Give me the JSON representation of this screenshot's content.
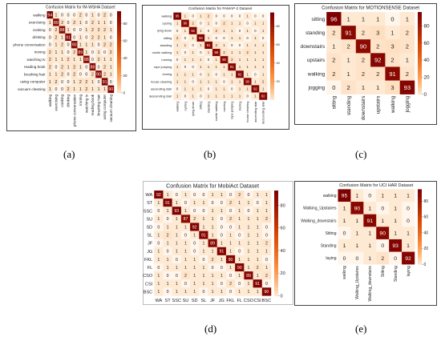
{
  "captions": [
    "(a)",
    "(b)",
    "(c)",
    "(d)",
    "(e)"
  ],
  "chart_data": [
    {
      "type": "heatmap",
      "title": "Confusion Matrix for IM-WSHA Dataset",
      "ylabels": [
        "walking",
        "exercising",
        "cooking",
        "drinking",
        "phone conversation",
        "ironing",
        "watching tv",
        "reading book",
        "brushing hair",
        "using computer",
        "vacuum cleaning"
      ],
      "xlabels": [
        "walking",
        "exercising",
        "cooking",
        "drinking",
        "phone conversation",
        "ironing",
        "watching tv",
        "reading book",
        "brushing hair",
        "using computer",
        "vacuum cleaning"
      ],
      "matrix": [
        [
          94,
          1,
          0,
          0,
          0,
          2,
          0,
          1,
          0,
          2,
          0
        ],
        [
          1,
          89,
          2,
          0,
          2,
          1,
          0,
          2,
          1,
          1,
          0
        ],
        [
          0,
          2,
          88,
          1,
          0,
          0,
          1,
          2,
          2,
          2,
          1
        ],
        [
          0,
          2,
          1,
          91,
          0,
          1,
          0,
          2,
          2,
          1,
          0
        ],
        [
          0,
          1,
          2,
          0,
          90,
          1,
          1,
          1,
          0,
          2,
          2
        ],
        [
          2,
          1,
          1,
          0,
          2,
          89,
          1,
          0,
          1,
          0,
          2
        ],
        [
          2,
          1,
          1,
          2,
          1,
          1,
          88,
          0,
          2,
          1,
          1
        ],
        [
          2,
          0,
          2,
          1,
          2,
          1,
          0,
          88,
          0,
          2,
          1
        ],
        [
          1,
          1,
          2,
          0,
          2,
          0,
          0,
          2,
          90,
          2,
          1
        ],
        [
          1,
          2,
          0,
          0,
          1,
          2,
          2,
          1,
          0,
          91,
          0
        ],
        [
          1,
          0,
          0,
          2,
          1,
          1,
          2,
          1,
          1,
          1,
          90
        ]
      ],
      "colorbar_ticks": [
        80,
        60,
        40,
        20,
        0
      ],
      "vmin": 0,
      "vmax": 94
    },
    {
      "type": "heatmap",
      "title": "Confusion Matrix for PAMAP-2 Dataset",
      "ylabels": [
        "walking",
        "cycling",
        "lying down",
        "sitting",
        "standing",
        "nordic walking",
        "running",
        "rope jumping",
        "ironing",
        "house cleaning",
        "ascending stair",
        "descending stair"
      ],
      "xlabels": [
        "walking",
        "cycling",
        "lying down",
        "sitting",
        "standing",
        "nordic walking",
        "running",
        "rope jumping",
        "ironing",
        "house cleaning",
        "ascending stair",
        "descending stair"
      ],
      "matrix": [
        [
          95,
          1,
          0,
          1,
          2,
          0,
          0,
          0,
          0,
          1,
          0,
          0
        ],
        [
          1,
          90,
          2,
          0,
          1,
          0,
          2,
          1,
          1,
          0,
          1,
          1
        ],
        [
          0,
          1,
          92,
          1,
          0,
          2,
          1,
          1,
          0,
          1,
          0,
          1
        ],
        [
          2,
          0,
          1,
          93,
          1,
          0,
          0,
          1,
          1,
          0,
          1,
          0
        ],
        [
          1,
          1,
          0,
          1,
          91,
          2,
          1,
          0,
          0,
          1,
          1,
          1
        ],
        [
          1,
          0,
          1,
          0,
          1,
          89,
          2,
          1,
          1,
          2,
          1,
          1
        ],
        [
          0,
          1,
          1,
          1,
          0,
          1,
          90,
          2,
          1,
          1,
          1,
          1
        ],
        [
          1,
          0,
          0,
          1,
          1,
          1,
          1,
          91,
          1,
          1,
          1,
          1
        ],
        [
          1,
          1,
          1,
          0,
          1,
          0,
          1,
          1,
          92,
          1,
          0,
          1
        ],
        [
          1,
          1,
          0,
          1,
          1,
          1,
          0,
          1,
          1,
          90,
          1,
          2
        ],
        [
          0,
          1,
          1,
          1,
          0,
          1,
          1,
          0,
          1,
          1,
          92,
          1
        ],
        [
          1,
          0,
          1,
          0,
          1,
          1,
          1,
          1,
          1,
          0,
          1,
          92
        ]
      ],
      "colorbar_ticks": [
        80,
        60,
        40,
        20
      ],
      "vmin": 0,
      "vmax": 95
    },
    {
      "type": "heatmap",
      "title": "Confusion Matrix for MOTIONSENSE Dataset",
      "ylabels": [
        "sitting",
        "standing",
        "downstairs",
        "upstairs",
        "walking",
        "jogging"
      ],
      "xlabels": [
        "sitting",
        "standing",
        "downstairs",
        "upstairs",
        "walking",
        "jogging"
      ],
      "matrix": [
        [
          96,
          1,
          1,
          1,
          0,
          1
        ],
        [
          2,
          91,
          2,
          3,
          1,
          2
        ],
        [
          1,
          2,
          90,
          2,
          3,
          2
        ],
        [
          2,
          1,
          2,
          92,
          2,
          1
        ],
        [
          2,
          1,
          2,
          2,
          91,
          2
        ],
        [
          0,
          2,
          1,
          1,
          3,
          93
        ]
      ],
      "colorbar_ticks": [
        80,
        60,
        40,
        20,
        0
      ],
      "vmin": 0,
      "vmax": 96
    },
    {
      "type": "heatmap",
      "title": "Confusion Matrix for MobiAct Dataset",
      "ylabels": [
        "WA",
        "ST",
        "SSC",
        "SU",
        "SD",
        "SL",
        "JF",
        "JG",
        "FKL",
        "FL",
        "CSO",
        "CSI",
        "BSC"
      ],
      "xlabels": [
        "WA",
        "ST",
        "SSC",
        "SU",
        "SD",
        "SL",
        "JF",
        "JG",
        "FKL",
        "FL",
        "CSO",
        "CSI",
        "BSC"
      ],
      "matrix": [
        [
          92,
          1,
          0,
          1,
          0,
          0,
          1,
          1,
          0,
          2,
          0,
          1,
          1
        ],
        [
          1,
          91,
          1,
          0,
          1,
          1,
          0,
          0,
          2,
          1,
          1,
          0,
          1
        ],
        [
          0,
          1,
          93,
          1,
          0,
          0,
          1,
          1,
          0,
          1,
          0,
          1,
          1
        ],
        [
          1,
          0,
          1,
          87,
          2,
          1,
          1,
          0,
          2,
          1,
          1,
          1,
          2
        ],
        [
          0,
          1,
          1,
          1,
          92,
          1,
          1,
          0,
          0,
          1,
          1,
          1,
          0
        ],
        [
          1,
          2,
          1,
          0,
          1,
          91,
          1,
          0,
          1,
          0,
          1,
          1,
          0
        ],
        [
          0,
          1,
          1,
          1,
          0,
          1,
          89,
          1,
          1,
          1,
          1,
          1,
          2
        ],
        [
          1,
          0,
          1,
          1,
          0,
          1,
          1,
          91,
          1,
          0,
          1,
          1,
          1
        ],
        [
          1,
          1,
          0,
          1,
          1,
          0,
          2,
          1,
          90,
          1,
          1,
          1,
          0
        ],
        [
          0,
          1,
          1,
          1,
          1,
          1,
          0,
          0,
          1,
          90,
          1,
          2,
          1
        ],
        [
          1,
          0,
          0,
          2,
          1,
          1,
          1,
          1,
          0,
          1,
          89,
          1,
          2
        ],
        [
          1,
          1,
          1,
          0,
          1,
          1,
          1,
          0,
          2,
          0,
          1,
          91,
          0
        ],
        [
          1,
          0,
          1,
          1,
          1,
          0,
          1,
          1,
          0,
          1,
          1,
          1,
          90
        ]
      ],
      "colorbar_ticks": [
        80,
        60,
        40,
        20,
        0
      ],
      "vmin": 0,
      "vmax": 93
    },
    {
      "type": "heatmap",
      "title": "Confusion Matrix for UCI HAR Dataset",
      "ylabels": [
        "walking",
        "Walking_Upstaires",
        "Walking_downstairs",
        "Sitting",
        "Standing",
        "laying"
      ],
      "xlabels": [
        "walking",
        "Walking_Upstaires",
        "Walking_downstairs",
        "Sitting",
        "Standing",
        "laying"
      ],
      "matrix": [
        [
          95,
          1,
          0,
          1,
          1,
          1
        ],
        [
          1,
          90,
          1,
          0,
          1,
          0
        ],
        [
          1,
          1,
          91,
          1,
          1,
          0
        ],
        [
          0,
          1,
          1,
          90,
          1,
          1
        ],
        [
          1,
          1,
          1,
          0,
          93,
          1
        ],
        [
          0,
          0,
          1,
          2,
          0,
          92
        ]
      ],
      "colorbar_ticks": [
        80,
        60,
        40,
        20,
        0
      ],
      "vmin": 0,
      "vmax": 95
    }
  ]
}
